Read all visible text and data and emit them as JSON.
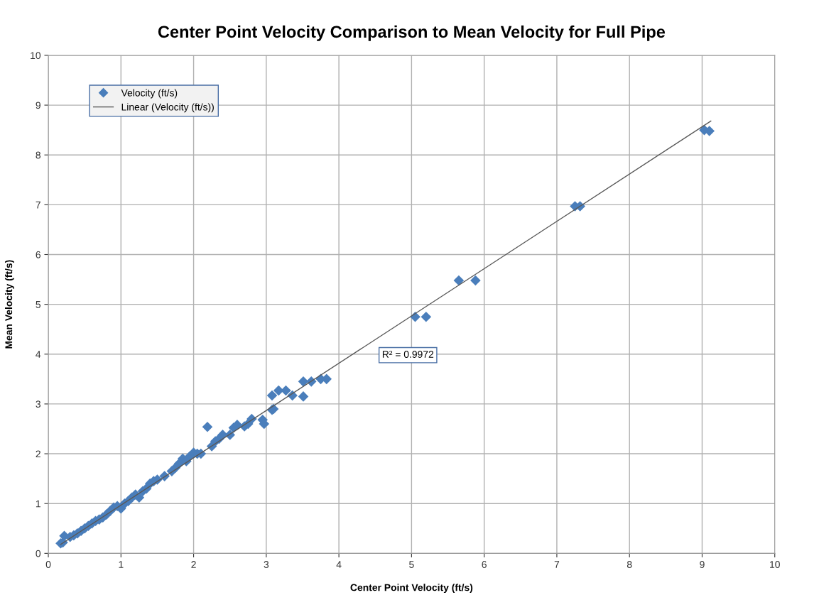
{
  "chart_data": {
    "type": "scatter",
    "title": "Center Point Velocity Comparison to Mean Velocity for Full Pipe",
    "xlabel": "Center Point Velocity (ft/s)",
    "ylabel": "Mean Velocity (ft/s)",
    "xlim": [
      0,
      10
    ],
    "ylim": [
      0,
      10
    ],
    "xticks": [
      0,
      1,
      2,
      3,
      4,
      5,
      6,
      7,
      8,
      9,
      10
    ],
    "yticks": [
      0,
      1,
      2,
      3,
      4,
      5,
      6,
      7,
      8,
      9,
      10
    ],
    "grid": true,
    "legend": "top left",
    "marker": "diamond",
    "annotations": [
      "R² = 0.9972"
    ],
    "series": [
      {
        "name": "Velocity (ft/s)",
        "color": "#4a7ebb",
        "x": [
          0.17,
          0.2,
          0.22,
          0.3,
          0.35,
          0.4,
          0.45,
          0.5,
          0.55,
          0.6,
          0.65,
          0.7,
          0.75,
          0.8,
          0.85,
          0.9,
          0.95,
          1.0,
          1.05,
          1.1,
          1.15,
          1.2,
          1.25,
          1.3,
          1.35,
          1.4,
          1.45,
          1.5,
          1.6,
          1.7,
          1.75,
          1.8,
          1.85,
          1.9,
          1.95,
          2.0,
          2.05,
          2.1,
          2.19,
          2.25,
          2.3,
          2.35,
          2.4,
          2.5,
          2.55,
          2.6,
          2.7,
          2.75,
          2.8,
          2.95,
          2.97,
          3.08,
          3.1,
          3.08,
          3.17,
          3.27,
          3.36,
          3.51,
          3.51,
          3.62,
          3.75,
          3.83,
          5.05,
          5.2,
          5.65,
          5.88,
          7.25,
          7.32,
          9.03,
          9.1
        ],
        "values": [
          0.2,
          0.22,
          0.35,
          0.33,
          0.36,
          0.4,
          0.45,
          0.5,
          0.55,
          0.6,
          0.65,
          0.68,
          0.72,
          0.78,
          0.85,
          0.92,
          0.95,
          0.9,
          1.0,
          1.05,
          1.12,
          1.18,
          1.12,
          1.25,
          1.3,
          1.4,
          1.45,
          1.48,
          1.55,
          1.65,
          1.72,
          1.8,
          1.9,
          1.85,
          1.95,
          2.02,
          2.0,
          2.0,
          2.54,
          2.15,
          2.25,
          2.3,
          2.38,
          2.38,
          2.52,
          2.58,
          2.55,
          2.6,
          2.7,
          2.68,
          2.6,
          2.88,
          2.9,
          3.17,
          3.27,
          3.27,
          3.17,
          3.15,
          3.45,
          3.45,
          3.5,
          3.5,
          4.75,
          4.75,
          5.48,
          5.48,
          6.97,
          6.97,
          8.5,
          8.48
        ]
      },
      {
        "name": "Linear (Velocity (ft/s))",
        "type": "line",
        "color": "#595959",
        "marker": "none",
        "x": [
          0.17,
          9.12
        ],
        "values": [
          0.18,
          8.68
        ]
      }
    ]
  }
}
